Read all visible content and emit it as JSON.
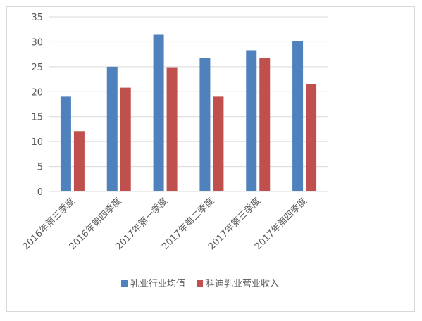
{
  "chart_data": {
    "type": "bar",
    "categories": [
      "2016年第三季度",
      "2016年第四季度",
      "2017年第一季度",
      "2017年第二季度",
      "2017年第三季度",
      "2017年第四季度"
    ],
    "series": [
      {
        "name": "乳业行业均值",
        "color": "#4f81bd",
        "values": [
          19.0,
          25.0,
          31.4,
          26.7,
          28.3,
          30.2
        ]
      },
      {
        "name": "科迪乳业营业收入",
        "color": "#c0504d",
        "values": [
          12.1,
          20.8,
          24.9,
          19.0,
          26.7,
          21.5
        ]
      }
    ],
    "ylim": [
      0,
      35
    ],
    "yticks": [
      0,
      5,
      10,
      15,
      20,
      25,
      30,
      35
    ],
    "grid": true,
    "legend_position": "bottom"
  }
}
